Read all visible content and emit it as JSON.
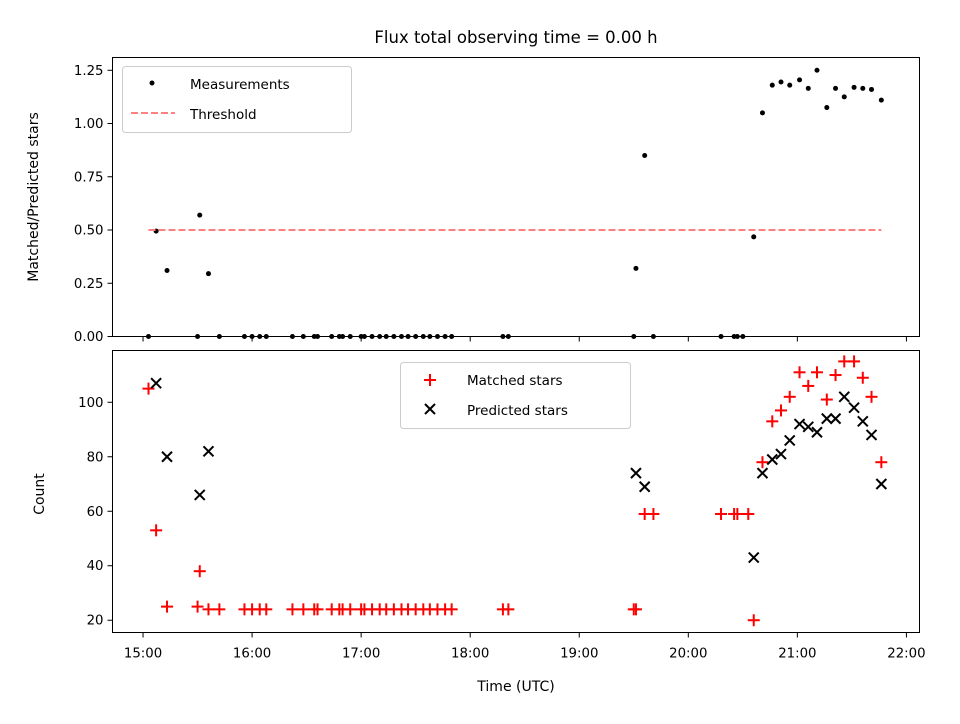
{
  "chart_data": {
    "title": "Flux total observing time = 0.00 h",
    "xlabel": "Time (UTC)",
    "xlim": [
      14.72,
      22.12
    ],
    "xticks": [
      15,
      16,
      17,
      18,
      19,
      20,
      21,
      22
    ],
    "xtick_labels": [
      "15:00",
      "16:00",
      "17:00",
      "18:00",
      "19:00",
      "20:00",
      "21:00",
      "22:00"
    ],
    "panels": [
      {
        "type": "scatter",
        "ylabel": "Matched/Predicted stars",
        "ylim": [
          0,
          1.31
        ],
        "yticks": [
          0,
          0.25,
          0.5,
          0.75,
          1.0,
          1.25
        ],
        "ytick_labels": [
          "0.00",
          "0.25",
          "0.50",
          "0.75",
          "1.00",
          "1.25"
        ],
        "legend_position": "upper-left",
        "series": [
          {
            "name": "Measurements",
            "marker": "dot",
            "color": "#000000",
            "points": [
              [
                15.05,
                0.0
              ],
              [
                15.12,
                0.495
              ],
              [
                15.22,
                0.31
              ],
              [
                15.5,
                0.0
              ],
              [
                15.52,
                0.57
              ],
              [
                15.6,
                0.295
              ],
              [
                15.7,
                0.0
              ],
              [
                15.93,
                0.0
              ],
              [
                16.0,
                0.0
              ],
              [
                16.07,
                0.0
              ],
              [
                16.13,
                0.0
              ],
              [
                16.37,
                0.0
              ],
              [
                16.47,
                0.0
              ],
              [
                16.57,
                0.0
              ],
              [
                16.6,
                0.0
              ],
              [
                16.73,
                0.0
              ],
              [
                16.8,
                0.0
              ],
              [
                16.83,
                0.0
              ],
              [
                16.9,
                0.0
              ],
              [
                17.0,
                0.0
              ],
              [
                17.03,
                0.0
              ],
              [
                17.1,
                0.0
              ],
              [
                17.17,
                0.0
              ],
              [
                17.23,
                0.0
              ],
              [
                17.3,
                0.0
              ],
              [
                17.37,
                0.0
              ],
              [
                17.43,
                0.0
              ],
              [
                17.5,
                0.0
              ],
              [
                17.57,
                0.0
              ],
              [
                17.63,
                0.0
              ],
              [
                17.7,
                0.0
              ],
              [
                17.77,
                0.0
              ],
              [
                17.83,
                0.0
              ],
              [
                18.3,
                0.0
              ],
              [
                18.35,
                0.0
              ],
              [
                19.5,
                0.0
              ],
              [
                19.52,
                0.32
              ],
              [
                19.6,
                0.85
              ],
              [
                19.68,
                0.0
              ],
              [
                20.3,
                0.0
              ],
              [
                20.42,
                0.0
              ],
              [
                20.45,
                0.0
              ],
              [
                20.5,
                0.0
              ],
              [
                20.6,
                0.468
              ],
              [
                20.68,
                1.05
              ],
              [
                20.77,
                1.18
              ],
              [
                20.85,
                1.195
              ],
              [
                20.93,
                1.18
              ],
              [
                21.02,
                1.205
              ],
              [
                21.1,
                1.165
              ],
              [
                21.18,
                1.25
              ],
              [
                21.27,
                1.075
              ],
              [
                21.35,
                1.165
              ],
              [
                21.43,
                1.125
              ],
              [
                21.52,
                1.17
              ],
              [
                21.6,
                1.165
              ],
              [
                21.68,
                1.16
              ],
              [
                21.77,
                1.11
              ]
            ]
          },
          {
            "name": "Threshold",
            "style": "dashed-line",
            "color": "#ff8080",
            "points": [
              [
                15.05,
                0.5
              ],
              [
                21.77,
                0.5
              ]
            ]
          }
        ]
      },
      {
        "type": "scatter",
        "ylabel": "Count",
        "ylim": [
          15.5,
          119
        ],
        "yticks": [
          20,
          40,
          60,
          80,
          100
        ],
        "ytick_labels": [
          "20",
          "40",
          "60",
          "80",
          "100"
        ],
        "legend_position": "upper-center",
        "series": [
          {
            "name": "Matched stars",
            "marker": "plus",
            "color": "#ff0000",
            "points": [
              [
                15.05,
                105
              ],
              [
                15.12,
                53
              ],
              [
                15.22,
                25
              ],
              [
                15.5,
                25
              ],
              [
                15.52,
                38
              ],
              [
                15.6,
                24
              ],
              [
                15.7,
                24
              ],
              [
                15.93,
                24
              ],
              [
                16.0,
                24
              ],
              [
                16.07,
                24
              ],
              [
                16.13,
                24
              ],
              [
                16.37,
                24
              ],
              [
                16.47,
                24
              ],
              [
                16.57,
                24
              ],
              [
                16.6,
                24
              ],
              [
                16.73,
                24
              ],
              [
                16.8,
                24
              ],
              [
                16.83,
                24
              ],
              [
                16.9,
                24
              ],
              [
                17.0,
                24
              ],
              [
                17.03,
                24
              ],
              [
                17.1,
                24
              ],
              [
                17.17,
                24
              ],
              [
                17.23,
                24
              ],
              [
                17.3,
                24
              ],
              [
                17.37,
                24
              ],
              [
                17.43,
                24
              ],
              [
                17.5,
                24
              ],
              [
                17.57,
                24
              ],
              [
                17.63,
                24
              ],
              [
                17.7,
                24
              ],
              [
                17.77,
                24
              ],
              [
                17.83,
                24
              ],
              [
                18.3,
                24
              ],
              [
                18.35,
                24
              ],
              [
                19.5,
                24
              ],
              [
                19.52,
                24
              ],
              [
                19.6,
                59
              ],
              [
                19.68,
                59
              ],
              [
                20.3,
                59
              ],
              [
                20.42,
                59
              ],
              [
                20.45,
                59
              ],
              [
                20.55,
                59
              ],
              [
                20.6,
                20
              ],
              [
                20.68,
                78
              ],
              [
                20.77,
                93
              ],
              [
                20.85,
                97
              ],
              [
                20.93,
                102
              ],
              [
                21.02,
                111
              ],
              [
                21.1,
                106
              ],
              [
                21.18,
                111
              ],
              [
                21.27,
                101
              ],
              [
                21.35,
                110
              ],
              [
                21.43,
                115
              ],
              [
                21.52,
                115
              ],
              [
                21.6,
                109
              ],
              [
                21.68,
                102
              ],
              [
                21.77,
                78
              ]
            ]
          },
          {
            "name": "Predicted stars",
            "marker": "x",
            "color": "#000000",
            "points": [
              [
                15.12,
                107
              ],
              [
                15.22,
                80
              ],
              [
                15.52,
                66
              ],
              [
                15.6,
                82
              ],
              [
                19.52,
                74
              ],
              [
                19.6,
                69
              ],
              [
                20.6,
                43
              ],
              [
                20.68,
                74
              ],
              [
                20.77,
                79
              ],
              [
                20.85,
                81
              ],
              [
                20.93,
                86
              ],
              [
                21.02,
                92
              ],
              [
                21.1,
                91
              ],
              [
                21.18,
                89
              ],
              [
                21.27,
                94
              ],
              [
                21.35,
                94
              ],
              [
                21.43,
                102
              ],
              [
                21.52,
                98
              ],
              [
                21.6,
                93
              ],
              [
                21.68,
                88
              ],
              [
                21.77,
                70
              ]
            ]
          }
        ]
      }
    ]
  }
}
